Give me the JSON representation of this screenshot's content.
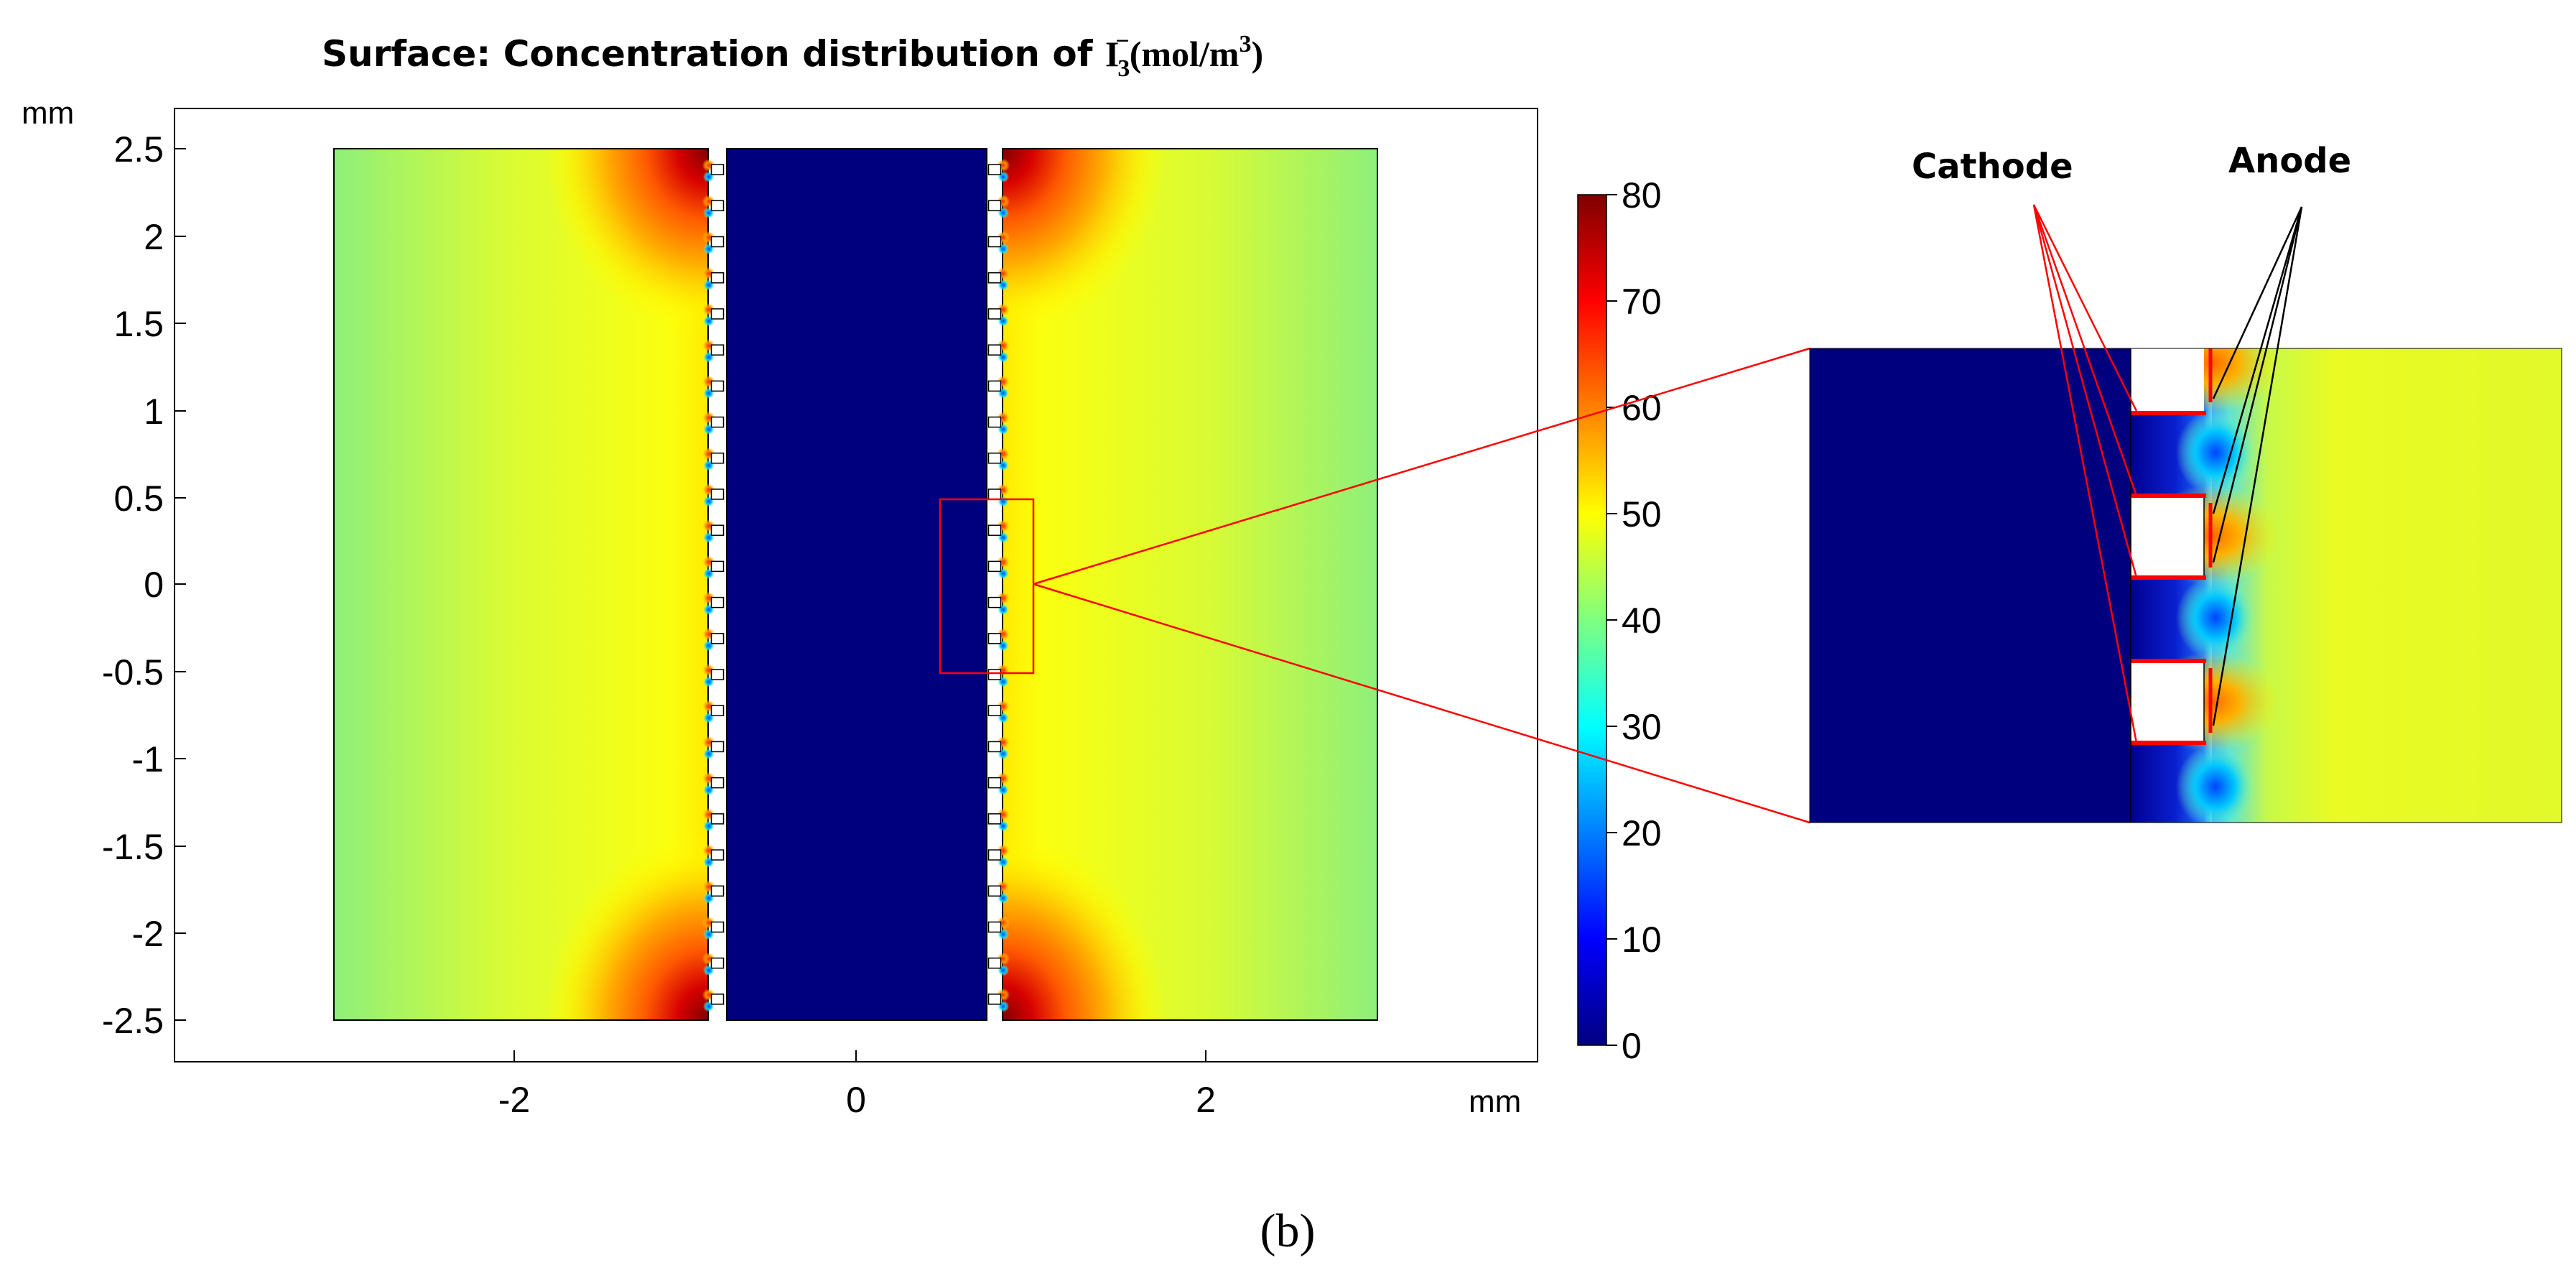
{
  "chart_data": {
    "type": "heatmap",
    "title": {
      "prefix": "Surface: Concentration distribution of ",
      "species": "I",
      "species_subscript": "3",
      "species_superscript": "−",
      "units": "(mol/m",
      "units_exponent": "3",
      "units_close": ")"
    },
    "x_unit": "mm",
    "y_unit": "mm",
    "xlim": [
      -3.9,
      3.9
    ],
    "ylim": [
      -2.75,
      2.75
    ],
    "x_ticks": [
      {
        "value": -2,
        "label": "-2"
      },
      {
        "value": 0,
        "label": "0"
      },
      {
        "value": 2,
        "label": "2"
      }
    ],
    "y_ticks": [
      {
        "value": 2.5,
        "label": "2.5"
      },
      {
        "value": 2,
        "label": "2"
      },
      {
        "value": 1.5,
        "label": "1.5"
      },
      {
        "value": 1,
        "label": "1"
      },
      {
        "value": 0.5,
        "label": "0.5"
      },
      {
        "value": 0,
        "label": "0"
      },
      {
        "value": -0.5,
        "label": "-0.5"
      },
      {
        "value": -1,
        "label": "-1"
      },
      {
        "value": -1.5,
        "label": "-1.5"
      },
      {
        "value": -2,
        "label": "-2"
      },
      {
        "value": -2.5,
        "label": "-2.5"
      }
    ],
    "colorbar": {
      "min": 0,
      "max": 80,
      "ticks": [
        {
          "value": 80,
          "label": "80"
        },
        {
          "value": 70,
          "label": "70"
        },
        {
          "value": 60,
          "label": "60"
        },
        {
          "value": 50,
          "label": "50"
        },
        {
          "value": 40,
          "label": "40"
        },
        {
          "value": 30,
          "label": "30"
        },
        {
          "value": 20,
          "label": "20"
        },
        {
          "value": 10,
          "label": "10"
        },
        {
          "value": 0,
          "label": "0"
        }
      ],
      "colormap": [
        "#00007f",
        "#0000ff",
        "#007fff",
        "#00ffff",
        "#7fff7f",
        "#ffff00",
        "#ff7f00",
        "#ff0000",
        "#7f0000"
      ]
    },
    "domain": {
      "x_range": [
        -3.0,
        3.0
      ],
      "y_range": [
        -2.5,
        2.5
      ],
      "left_electrolyte": {
        "x_range": [
          -3.0,
          -0.85
        ],
        "concentration_range": [
          40,
          80
        ]
      },
      "central_electrode": {
        "x_range": [
          -0.75,
          0.75
        ],
        "concentration": 0
      },
      "right_electrolyte": {
        "x_range": [
          0.85,
          3.0
        ],
        "concentration_range": [
          40,
          80
        ]
      },
      "bulk_concentration_near_walls": 44,
      "bulk_concentration_near_channels": 52,
      "corner_peak_concentration": 80,
      "hole_columns_x": [
        -0.8,
        0.8
      ],
      "hole_count_per_column": 24
    },
    "zoom_box": {
      "x_range": [
        0.5,
        1.0
      ],
      "y_range": [
        -0.5,
        0.5
      ],
      "color": "#ff0000"
    },
    "annotations": {
      "cathode_label": "Cathode",
      "anode_label": "Anode"
    },
    "caption": "(b)"
  }
}
